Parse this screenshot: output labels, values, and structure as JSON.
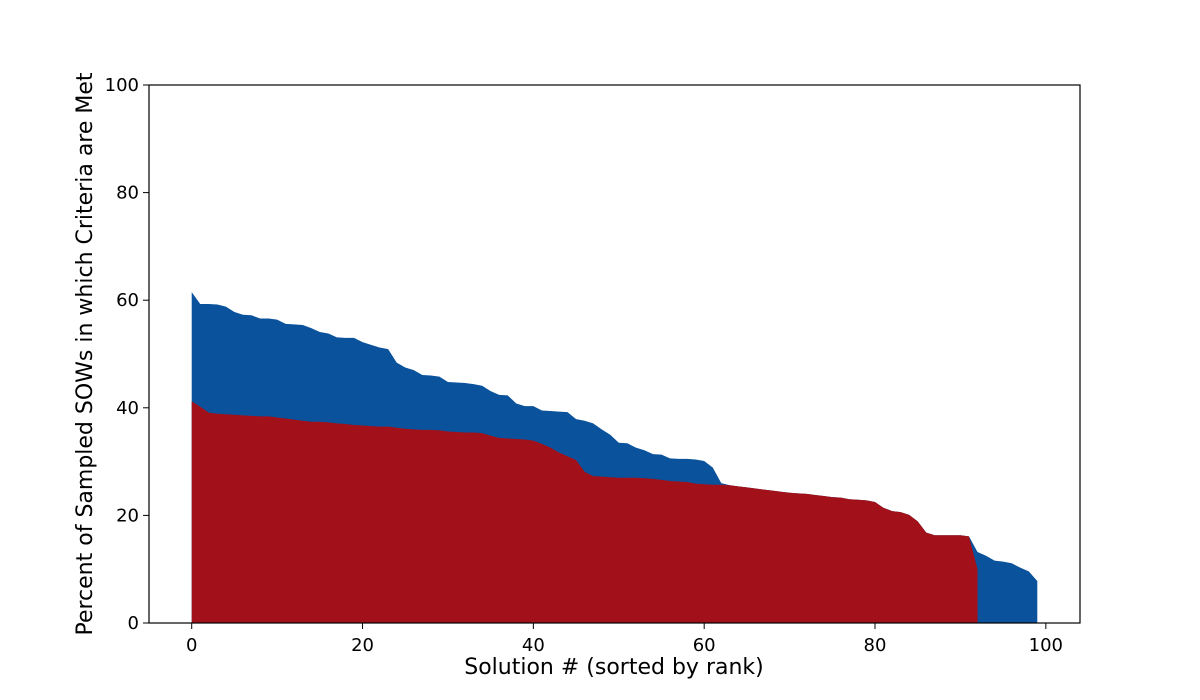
{
  "chart_data": {
    "type": "area",
    "title": "",
    "xlabel": "Solution # (sorted by rank)",
    "ylabel": "Percent of Sampled SOWs in which Criteria are Met",
    "xlim": [
      -5,
      104
    ],
    "ylim": [
      0,
      100
    ],
    "xticks": [
      0,
      20,
      40,
      60,
      80,
      100
    ],
    "yticks": [
      0,
      20,
      40,
      60,
      80,
      100
    ],
    "grid": false,
    "legend": "none",
    "series": [
      {
        "color": "#0a529c",
        "points": [
          [
            0,
            61.5
          ],
          [
            1,
            59.3
          ],
          [
            2,
            59.3
          ],
          [
            3,
            59.2
          ],
          [
            4,
            58.8
          ],
          [
            5,
            57.8
          ],
          [
            6,
            57.3
          ],
          [
            7,
            57.2
          ],
          [
            8,
            56.6
          ],
          [
            9,
            56.6
          ],
          [
            10,
            56.4
          ],
          [
            11,
            55.6
          ],
          [
            12,
            55.5
          ],
          [
            13,
            55.4
          ],
          [
            14,
            54.8
          ],
          [
            15,
            54.1
          ],
          [
            16,
            53.8
          ],
          [
            17,
            53.1
          ],
          [
            18,
            53.0
          ],
          [
            19,
            53.0
          ],
          [
            20,
            52.2
          ],
          [
            21,
            51.7
          ],
          [
            22,
            51.2
          ],
          [
            23,
            50.9
          ],
          [
            24,
            48.4
          ],
          [
            25,
            47.5
          ],
          [
            26,
            47.0
          ],
          [
            27,
            46.1
          ],
          [
            28,
            46.0
          ],
          [
            29,
            45.8
          ],
          [
            30,
            44.8
          ],
          [
            31,
            44.7
          ],
          [
            32,
            44.6
          ],
          [
            33,
            44.4
          ],
          [
            34,
            44.1
          ],
          [
            35,
            43.1
          ],
          [
            36,
            42.4
          ],
          [
            37,
            42.3
          ],
          [
            38,
            40.8
          ],
          [
            39,
            40.3
          ],
          [
            40,
            40.3
          ],
          [
            41,
            39.5
          ],
          [
            42,
            39.4
          ],
          [
            43,
            39.3
          ],
          [
            44,
            39.2
          ],
          [
            45,
            37.9
          ],
          [
            46,
            37.6
          ],
          [
            47,
            37.1
          ],
          [
            48,
            36.0
          ],
          [
            49,
            35.0
          ],
          [
            50,
            33.5
          ],
          [
            51,
            33.4
          ],
          [
            52,
            32.6
          ],
          [
            53,
            32.1
          ],
          [
            54,
            31.4
          ],
          [
            55,
            31.3
          ],
          [
            56,
            30.6
          ],
          [
            57,
            30.5
          ],
          [
            58,
            30.5
          ],
          [
            59,
            30.4
          ],
          [
            60,
            30.1
          ],
          [
            61,
            28.9
          ],
          [
            62,
            26.0
          ],
          [
            63,
            25.6
          ],
          [
            64,
            25.4
          ],
          [
            65,
            25.2
          ],
          [
            66,
            25.0
          ],
          [
            67,
            24.8
          ],
          [
            68,
            24.6
          ],
          [
            69,
            24.4
          ],
          [
            70,
            24.2
          ],
          [
            71,
            24.1
          ],
          [
            72,
            24.0
          ],
          [
            73,
            23.8
          ],
          [
            74,
            23.6
          ],
          [
            75,
            23.4
          ],
          [
            76,
            23.3
          ],
          [
            77,
            23.0
          ],
          [
            78,
            22.9
          ],
          [
            79,
            22.8
          ],
          [
            80,
            22.5
          ],
          [
            81,
            21.4
          ],
          [
            82,
            20.8
          ],
          [
            83,
            20.6
          ],
          [
            84,
            20.1
          ],
          [
            85,
            18.9
          ],
          [
            86,
            16.8
          ],
          [
            87,
            16.3
          ],
          [
            88,
            16.3
          ],
          [
            89,
            16.3
          ],
          [
            90,
            16.3
          ],
          [
            91,
            16.1
          ],
          [
            92,
            13.2
          ],
          [
            93,
            12.5
          ],
          [
            94,
            11.6
          ],
          [
            95,
            11.4
          ],
          [
            96,
            11.1
          ],
          [
            97,
            10.3
          ],
          [
            98,
            9.6
          ],
          [
            99,
            7.8
          ]
        ]
      },
      {
        "color": "#a21019",
        "points": [
          [
            0,
            41.2
          ],
          [
            1,
            40.2
          ],
          [
            2,
            39.1
          ],
          [
            3,
            38.9
          ],
          [
            4,
            38.8
          ],
          [
            5,
            38.7
          ],
          [
            6,
            38.6
          ],
          [
            7,
            38.5
          ],
          [
            8,
            38.4
          ],
          [
            9,
            38.4
          ],
          [
            10,
            38.2
          ],
          [
            11,
            38.0
          ],
          [
            12,
            37.8
          ],
          [
            13,
            37.6
          ],
          [
            14,
            37.4
          ],
          [
            15,
            37.4
          ],
          [
            16,
            37.3
          ],
          [
            17,
            37.1
          ],
          [
            18,
            37.0
          ],
          [
            19,
            36.8
          ],
          [
            20,
            36.7
          ],
          [
            21,
            36.6
          ],
          [
            22,
            36.5
          ],
          [
            23,
            36.5
          ],
          [
            24,
            36.3
          ],
          [
            25,
            36.1
          ],
          [
            26,
            36.0
          ],
          [
            27,
            35.9
          ],
          [
            28,
            35.9
          ],
          [
            29,
            35.8
          ],
          [
            30,
            35.6
          ],
          [
            31,
            35.5
          ],
          [
            32,
            35.4
          ],
          [
            33,
            35.4
          ],
          [
            34,
            35.3
          ],
          [
            35,
            34.8
          ],
          [
            36,
            34.4
          ],
          [
            37,
            34.3
          ],
          [
            38,
            34.2
          ],
          [
            39,
            34.1
          ],
          [
            40,
            33.9
          ],
          [
            41,
            33.3
          ],
          [
            42,
            32.6
          ],
          [
            43,
            31.7
          ],
          [
            44,
            31.0
          ],
          [
            45,
            30.3
          ],
          [
            46,
            28.1
          ],
          [
            47,
            27.3
          ],
          [
            48,
            27.2
          ],
          [
            49,
            27.1
          ],
          [
            50,
            27.0
          ],
          [
            51,
            27.0
          ],
          [
            52,
            27.0
          ],
          [
            53,
            26.9
          ],
          [
            54,
            26.8
          ],
          [
            55,
            26.6
          ],
          [
            56,
            26.4
          ],
          [
            57,
            26.3
          ],
          [
            58,
            26.2
          ],
          [
            59,
            25.9
          ],
          [
            60,
            25.8
          ],
          [
            61,
            25.7
          ],
          [
            62,
            25.7
          ],
          [
            63,
            25.6
          ],
          [
            64,
            25.4
          ],
          [
            65,
            25.2
          ],
          [
            66,
            25.0
          ],
          [
            67,
            24.8
          ],
          [
            68,
            24.6
          ],
          [
            69,
            24.4
          ],
          [
            70,
            24.2
          ],
          [
            71,
            24.1
          ],
          [
            72,
            24.0
          ],
          [
            73,
            23.8
          ],
          [
            74,
            23.6
          ],
          [
            75,
            23.4
          ],
          [
            76,
            23.3
          ],
          [
            77,
            23.0
          ],
          [
            78,
            22.9
          ],
          [
            79,
            22.8
          ],
          [
            80,
            22.5
          ],
          [
            81,
            21.4
          ],
          [
            82,
            20.8
          ],
          [
            83,
            20.6
          ],
          [
            84,
            20.1
          ],
          [
            85,
            18.9
          ],
          [
            86,
            16.8
          ],
          [
            87,
            16.3
          ],
          [
            88,
            16.3
          ],
          [
            89,
            16.3
          ],
          [
            90,
            16.3
          ],
          [
            91,
            16.1
          ],
          [
            92,
            10.0
          ],
          [
            92.01,
            0
          ]
        ]
      }
    ]
  }
}
